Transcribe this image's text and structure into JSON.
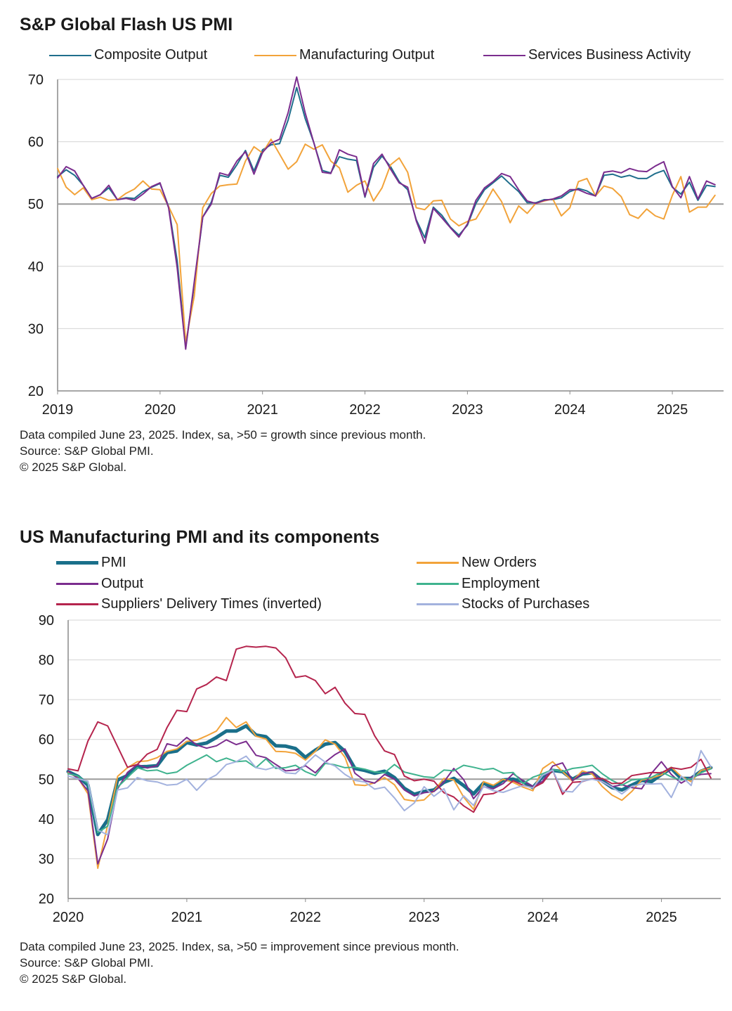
{
  "chart_data": [
    {
      "type": "line",
      "title": "S&P Global Flash US PMI",
      "xlabel": "",
      "ylabel": "",
      "x_range": [
        2019.0,
        2025.5
      ],
      "ylim": [
        20,
        70
      ],
      "y_ticks": [
        "70",
        "60",
        "50",
        "40",
        "30",
        "20"
      ],
      "x_ticks": [
        "2019",
        "2020",
        "2021",
        "2022",
        "2023",
        "2024",
        "2025"
      ],
      "reference_line": 50,
      "grid": true,
      "legend_position": "top",
      "x_start": "2019-01",
      "series": [
        {
          "name": "Composite Output",
          "color": "#1f6e8c",
          "values": [
            54.4,
            55.5,
            54.6,
            53.0,
            50.9,
            51.5,
            52.6,
            50.7,
            51.0,
            50.9,
            52.0,
            52.7,
            53.3,
            49.6,
            40.9,
            27.0,
            37.0,
            47.9,
            50.3,
            54.6,
            54.3,
            56.3,
            58.6,
            55.3,
            58.7,
            59.5,
            59.7,
            63.5,
            68.7,
            63.7,
            59.9,
            55.4,
            55.0,
            57.6,
            57.2,
            57.0,
            51.1,
            55.9,
            57.7,
            56.0,
            53.6,
            52.3,
            47.5,
            44.6,
            49.5,
            48.2,
            46.3,
            45.0,
            46.6,
            50.1,
            52.3,
            53.4,
            54.5,
            53.2,
            52.0,
            50.2,
            50.2,
            50.7,
            50.7,
            51.0,
            52.0,
            52.5,
            52.1,
            51.3,
            54.6,
            54.8,
            54.3,
            54.6,
            54.1,
            54.1,
            54.9,
            55.4,
            52.7,
            51.6,
            53.5,
            50.6,
            53.0,
            52.8
          ]
        },
        {
          "name": "Manufacturing Output",
          "color": "#f2a33a",
          "values": [
            55.7,
            52.7,
            51.5,
            52.6,
            50.7,
            51.1,
            50.6,
            50.7,
            51.7,
            52.4,
            53.7,
            52.4,
            52.3,
            49.6,
            46.7,
            27.8,
            35.2,
            49.4,
            51.7,
            52.9,
            53.1,
            53.2,
            56.9,
            59.2,
            58.2,
            60.4,
            58.0,
            55.6,
            56.8,
            59.6,
            58.8,
            59.5,
            56.9,
            55.8,
            51.9,
            53.0,
            53.7,
            50.5,
            52.6,
            56.3,
            57.4,
            55.1,
            49.4,
            49.1,
            50.5,
            50.6,
            47.6,
            46.5,
            47.2,
            47.6,
            49.9,
            52.4,
            50.4,
            47.0,
            49.7,
            48.5,
            50.1,
            50.5,
            50.8,
            48.1,
            49.4,
            53.6,
            54.1,
            51.3,
            52.9,
            52.5,
            51.2,
            48.3,
            47.7,
            49.2,
            48.1,
            47.6,
            51.4,
            54.4,
            48.7,
            49.5,
            49.5,
            51.4
          ]
        },
        {
          "name": "Services Business Activity",
          "color": "#7b2d8e",
          "values": [
            54.2,
            56.0,
            55.3,
            53.0,
            50.9,
            51.5,
            53.0,
            50.7,
            50.9,
            50.6,
            51.6,
            52.8,
            53.4,
            49.4,
            39.8,
            26.7,
            37.5,
            47.9,
            50.0,
            55.0,
            54.6,
            56.9,
            58.4,
            54.8,
            58.3,
            59.8,
            60.4,
            64.7,
            70.4,
            64.6,
            59.9,
            55.1,
            54.9,
            58.7,
            58.0,
            57.6,
            51.2,
            56.5,
            58.0,
            55.6,
            53.4,
            52.7,
            47.3,
            43.7,
            49.3,
            47.8,
            46.2,
            44.7,
            46.8,
            50.6,
            52.6,
            53.6,
            54.9,
            54.4,
            52.3,
            50.5,
            50.1,
            50.6,
            50.8,
            51.3,
            52.3,
            52.3,
            51.7,
            51.3,
            55.1,
            55.3,
            55.0,
            55.7,
            55.3,
            55.2,
            56.1,
            56.8,
            52.8,
            51.0,
            54.4,
            50.8,
            53.7,
            53.1
          ]
        }
      ],
      "notes": [
        "Data compiled June 23, 2025. Index,  sa, >50 = growth since previous month.",
        "Source: S&P Global PMI.",
        "© 2025 S&P Global."
      ]
    },
    {
      "type": "line",
      "title": "US Manufacturing PMI and its components",
      "xlabel": "",
      "ylabel": "",
      "x_range": [
        2020.0,
        2025.5
      ],
      "ylim": [
        20,
        90
      ],
      "y_ticks": [
        "90",
        "80",
        "70",
        "60",
        "50",
        "40",
        "30",
        "20"
      ],
      "x_ticks": [
        "2020",
        "2021",
        "2022",
        "2023",
        "2024",
        "2025"
      ],
      "reference_line": 50,
      "grid": true,
      "legend_position": "top",
      "x_start": "2020-01",
      "series": [
        {
          "name": "PMI",
          "color": "#1a6f8a",
          "width": 5,
          "values": [
            51.9,
            50.7,
            48.5,
            36.1,
            39.8,
            49.8,
            50.9,
            53.1,
            53.2,
            53.4,
            56.7,
            57.1,
            59.2,
            58.6,
            59.1,
            60.5,
            62.1,
            62.1,
            63.4,
            61.1,
            60.7,
            58.4,
            58.3,
            57.7,
            55.5,
            57.3,
            58.8,
            59.2,
            57.0,
            52.7,
            52.2,
            51.5,
            52.0,
            50.4,
            47.7,
            46.2,
            46.9,
            47.3,
            49.2,
            50.2,
            48.4,
            46.3,
            49.0,
            47.9,
            49.8,
            50.0,
            49.4,
            47.9,
            50.7,
            52.2,
            51.9,
            50.0,
            51.3,
            51.6,
            49.6,
            47.9,
            47.3,
            48.5,
            49.7,
            49.4,
            51.2,
            52.7,
            50.2,
            50.2,
            52.0,
            52.9
          ]
        },
        {
          "name": "New Orders",
          "color": "#f2a33a",
          "values": [
            51.7,
            50.3,
            46.3,
            27.6,
            38.5,
            50.7,
            52.9,
            54.4,
            54.6,
            55.4,
            57.0,
            57.6,
            59.5,
            59.8,
            60.9,
            62.1,
            65.5,
            63.0,
            64.4,
            60.8,
            60.1,
            57.0,
            56.9,
            56.5,
            54.8,
            57.0,
            59.9,
            58.8,
            55.5,
            48.6,
            48.4,
            49.1,
            50.4,
            48.6,
            44.9,
            44.5,
            44.8,
            47.1,
            50.2,
            49.8,
            45.5,
            42.4,
            49.4,
            48.5,
            50.0,
            49.2,
            48.0,
            47.1,
            52.7,
            54.4,
            51.9,
            49.5,
            52.1,
            51.3,
            48.2,
            46.0,
            44.7,
            46.9,
            49.8,
            50.3,
            51.1,
            53.0,
            50.7,
            49.4,
            52.2,
            52.8
          ]
        },
        {
          "name": "Output",
          "color": "#7b2d8e",
          "values": [
            52.0,
            50.2,
            47.1,
            28.7,
            35.0,
            47.6,
            51.7,
            53.7,
            52.8,
            53.4,
            58.9,
            58.3,
            60.5,
            58.6,
            57.8,
            58.4,
            59.9,
            58.7,
            59.5,
            56.0,
            55.4,
            53.7,
            52.1,
            52.3,
            53.4,
            51.6,
            54.3,
            56.2,
            57.6,
            51.5,
            49.6,
            49.0,
            51.2,
            50.0,
            47.3,
            45.8,
            46.6,
            46.9,
            49.3,
            52.7,
            49.9,
            45.1,
            48.1,
            47.6,
            48.9,
            51.4,
            49.6,
            48.2,
            49.5,
            53.3,
            54.1,
            49.6,
            51.4,
            51.8,
            49.4,
            48.1,
            48.6,
            47.9,
            47.6,
            51.5,
            54.4,
            51.2,
            49.0,
            50.5,
            51.2,
            51.4
          ]
        },
        {
          "name": "Employment",
          "color": "#3fb38e",
          "values": [
            51.4,
            50.8,
            48.9,
            36.6,
            38.2,
            48.0,
            50.4,
            52.9,
            52.1,
            52.3,
            51.4,
            51.8,
            53.5,
            54.8,
            56.1,
            54.4,
            55.3,
            54.4,
            54.6,
            52.9,
            55.1,
            52.7,
            52.9,
            53.5,
            51.9,
            50.9,
            54.0,
            53.6,
            52.9,
            53.0,
            52.5,
            51.8,
            51.6,
            53.7,
            51.8,
            51.2,
            50.6,
            50.4,
            52.3,
            52.1,
            53.5,
            53.0,
            52.4,
            52.7,
            51.5,
            51.7,
            48.9,
            50.5,
            51.4,
            52.4,
            51.9,
            52.7,
            53.0,
            53.5,
            51.4,
            49.7,
            48.5,
            49.8,
            50.0,
            50.5,
            51.8,
            50.6,
            49.8,
            50.1,
            51.6,
            52.6
          ]
        },
        {
          "name": "Suppliers' Delivery Times (inverted)",
          "color": "#b5244d",
          "values": [
            52.6,
            52.1,
            59.6,
            64.4,
            63.4,
            58.2,
            53.0,
            53.7,
            56.3,
            57.5,
            63.0,
            67.3,
            67.0,
            72.7,
            73.8,
            75.7,
            74.8,
            82.7,
            83.4,
            83.2,
            83.4,
            83.0,
            80.5,
            75.6,
            76.0,
            74.8,
            71.5,
            73.1,
            69.1,
            66.5,
            66.3,
            60.9,
            57.1,
            56.2,
            50.8,
            49.6,
            50.0,
            49.5,
            46.6,
            45.5,
            43.3,
            41.7,
            46.1,
            46.4,
            47.5,
            49.6,
            48.5,
            47.8,
            49.1,
            52.3,
            46.2,
            49.2,
            49.4,
            50.1,
            50.2,
            48.9,
            49.0,
            50.9,
            51.3,
            51.7,
            51.6,
            52.9,
            52.5,
            53.0,
            55.0,
            50.3
          ]
        },
        {
          "name": "Stocks of Purchases",
          "color": "#a3b2de",
          "values": [
            50.8,
            50.1,
            49.5,
            37.2,
            36.0,
            47.3,
            47.8,
            50.4,
            49.6,
            49.3,
            48.5,
            48.7,
            50.0,
            47.2,
            49.8,
            51.1,
            53.7,
            54.4,
            55.8,
            52.9,
            52.4,
            53.1,
            51.6,
            51.4,
            53.7,
            56.1,
            54.3,
            53.3,
            51.2,
            49.7,
            49.3,
            47.5,
            48.0,
            45.3,
            42.1,
            44.0,
            48.1,
            45.7,
            47.6,
            42.3,
            45.8,
            43.4,
            48.2,
            47.1,
            46.7,
            47.6,
            48.4,
            47.8,
            51.0,
            52.3,
            47.0,
            46.8,
            49.5,
            50.0,
            49.4,
            48.0,
            46.3,
            48.2,
            48.8,
            48.8,
            48.9,
            45.4,
            50.8,
            48.4,
            57.2,
            53.1
          ]
        }
      ],
      "notes": [
        "Data compiled June 23, 2025. Index,  sa, >50 = improvement since previous month.",
        "Source: S&P Global PMI.",
        "© 2025 S&P Global."
      ]
    }
  ]
}
